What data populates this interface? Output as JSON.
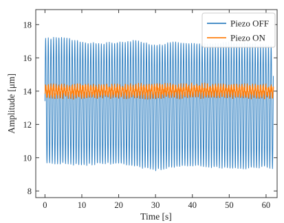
{
  "chart_data": {
    "type": "line",
    "title": "",
    "xlabel": "Time [s]",
    "ylabel": "Amplitude [μm]",
    "xlim": [
      -2.5,
      63
    ],
    "ylim": [
      7.6,
      18.9
    ],
    "xticks": [
      0,
      10,
      20,
      30,
      40,
      50,
      60
    ],
    "yticks": [
      8,
      10,
      12,
      14,
      16,
      18
    ],
    "xtick_labels": [
      "0",
      "10",
      "20",
      "30",
      "40",
      "50",
      "60"
    ],
    "ytick_labels": [
      "8",
      "10",
      "12",
      "14",
      "16",
      "18"
    ],
    "grid": false,
    "legend_position": "top-right",
    "series": [
      {
        "name": "Piezo OFF",
        "color": "#2f7fc1",
        "period_s": 0.72,
        "envelope": {
          "t": [
            0,
            5,
            10,
            15,
            20,
            25,
            30,
            35,
            40,
            45,
            50,
            55,
            60,
            62
          ],
          "max": [
            17.2,
            17.3,
            17.0,
            16.9,
            17.0,
            17.1,
            16.8,
            17.0,
            16.9,
            16.9,
            17.0,
            16.9,
            16.8,
            16.8
          ],
          "min": [
            9.6,
            9.6,
            9.5,
            9.6,
            9.6,
            9.4,
            9.2,
            9.4,
            9.5,
            9.4,
            9.3,
            9.3,
            9.4,
            9.3
          ]
        }
      },
      {
        "name": "Piezo ON",
        "color": "#ff7f0e",
        "period_s": 0.72,
        "envelope": {
          "t": [
            0,
            10,
            20,
            30,
            40,
            50,
            62
          ],
          "max": [
            14.45,
            14.5,
            14.45,
            14.5,
            14.5,
            14.45,
            14.45
          ],
          "min": [
            13.55,
            13.5,
            13.55,
            13.5,
            13.55,
            13.55,
            13.5
          ]
        }
      }
    ]
  }
}
